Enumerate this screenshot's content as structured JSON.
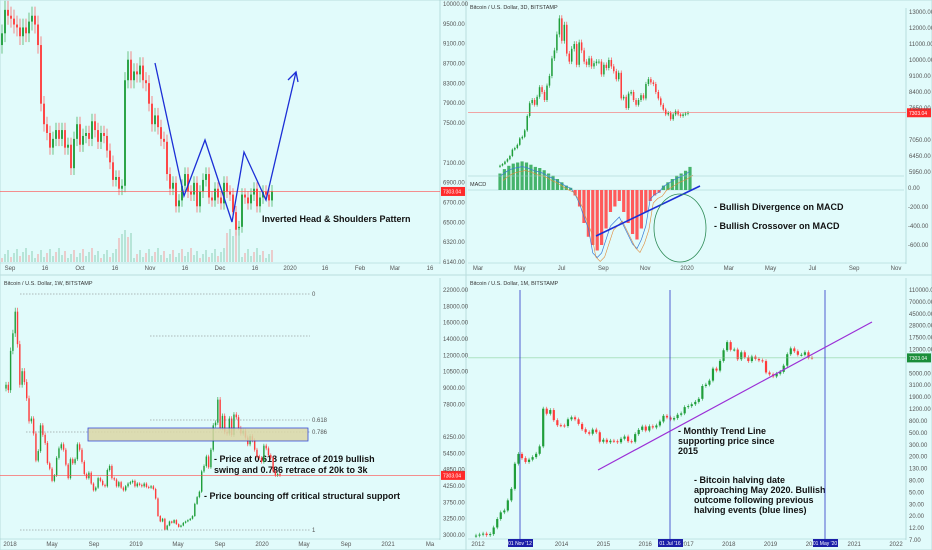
{
  "current_price": "7303.04",
  "colors": {
    "up": "#1f9e3a",
    "down": "#ff3b3b",
    "price_line": "#ff4d4d",
    "bg": "#e1fbfb",
    "pattern": "#1c2fd6",
    "trend": "#9b2fd6",
    "halving": "#2a36c8",
    "halving_label_bg": "#1b1ea8",
    "price_tag_red": "#ff2a2a",
    "price_tag_green": "#1b8e3a"
  },
  "chart_data": [
    {
      "type": "candlestick",
      "interval": "1D",
      "title": "",
      "x_labels": [
        "Sep",
        "16",
        "Oct",
        "16",
        "Nov",
        "16",
        "Dec",
        "16",
        "2020",
        "16",
        "Feb",
        "Mar",
        "16"
      ],
      "y_ticks": [
        "10000.00",
        "9500.00",
        "9100.00",
        "8700.00",
        "8300.00",
        "7900.00",
        "7500.00",
        "7303.04",
        "7100.00",
        "6900.00",
        "6700.00",
        "6500.00",
        "6320.00",
        "6140.00"
      ],
      "annotation": "Inverted Head & Shoulders Pattern",
      "closes": [
        10000,
        10400,
        10300,
        10250,
        10150,
        10100,
        9950,
        10100,
        10000,
        10200,
        10300,
        10150,
        9800,
        8800,
        8450,
        8300,
        8050,
        8200,
        8350,
        8200,
        8350,
        8050,
        8100,
        7700,
        8200,
        8450,
        8100,
        8250,
        8300,
        8200,
        8500,
        8350,
        8150,
        8300,
        8250,
        8000,
        7800,
        7500,
        7550,
        7350,
        7400,
        9200,
        9550,
        9200,
        9350,
        9300,
        9450,
        9200,
        9150,
        8800,
        8450,
        8600,
        8400,
        8200,
        8150,
        7600,
        7350,
        7450,
        7050,
        7150,
        7400,
        7600,
        7300,
        7250,
        7450,
        7050,
        7300,
        7500,
        7600,
        7200,
        7150,
        7350,
        7200,
        7100,
        7450,
        7300,
        7250,
        6950,
        6650,
        6700,
        7250,
        7200,
        7100,
        7250,
        7350,
        7050,
        7200,
        7300,
        7250,
        7150,
        7303
      ]
    },
    {
      "type": "candlestick",
      "interval": "3D",
      "title": "Bitcoin / U.S. Dollar, 3D, BITSTAMP",
      "x_labels": [
        "Mar",
        "May",
        "Jul",
        "Sep",
        "Nov",
        "2020",
        "Mar",
        "May",
        "Jul",
        "Sep",
        "Nov"
      ],
      "y_ticks": [
        "13000.00",
        "12000.00",
        "11000.00",
        "10000.00",
        "9100.00",
        "8400.00",
        "7650.00",
        "7303.04",
        "7050.00",
        "6450.00",
        "5950.00"
      ],
      "macd_ticks": [
        "0.00",
        "-200.00",
        "-400.00",
        "-600.00"
      ],
      "macd_label": "MACD",
      "annotations": [
        "- Bullish Divergence on MACD",
        "- Bullish Crossover on MACD"
      ],
      "closes": [
        4000,
        4100,
        4250,
        4400,
        4600,
        5000,
        5100,
        5300,
        5700,
        5800,
        6200,
        7100,
        7900,
        8100,
        7800,
        8300,
        8900,
        8600,
        8100,
        9000,
        9600,
        10700,
        11200,
        12200,
        13200,
        11800,
        12800,
        11000,
        10500,
        11300,
        11600,
        10300,
        11700,
        11200,
        10500,
        10300,
        10700,
        10200,
        10400,
        10500,
        10500,
        9700,
        10300,
        10100,
        10600,
        10200,
        9900,
        9400,
        9800,
        8200,
        8300,
        7600,
        8500,
        8600,
        8100,
        7800,
        8100,
        8400,
        8200,
        9100,
        9400,
        9200,
        9100,
        8600,
        8200,
        7800,
        7500,
        7200,
        7300,
        6900,
        7200,
        7400,
        7200,
        7100,
        7200,
        7250,
        7303
      ],
      "macd_hist": [
        30,
        38,
        44,
        48,
        50,
        52,
        50,
        46,
        42,
        40,
        36,
        30,
        26,
        20,
        14,
        8,
        4,
        -10,
        -30,
        -60,
        -85,
        -100,
        -110,
        -100,
        -70,
        -40,
        -30,
        -20,
        -40,
        -60,
        -80,
        -90,
        -70,
        -40,
        -20,
        -10,
        -5,
        8,
        14,
        20,
        26,
        30,
        35,
        42
      ]
    },
    {
      "type": "candlestick",
      "interval": "1W",
      "title": "Bitcoin / U.S. Dollar, 1W, BITSTAMP",
      "x_labels": [
        "2018",
        "May",
        "Sep",
        "2019",
        "May",
        "Sep",
        "2020",
        "May",
        "Sep",
        "2021",
        "Ma"
      ],
      "y_ticks": [
        "22000.00",
        "18000.00",
        "16000.00",
        "14000.00",
        "12000.00",
        "10500.00",
        "9000.00",
        "7800.00",
        "7303.04",
        "6250.00",
        "5450.00",
        "4850.00",
        "4250.00",
        "3750.00",
        "3250.00",
        "3000.00"
      ],
      "fib_levels": [
        "0",
        "0.618",
        "0.786",
        "1"
      ],
      "annotations": [
        "- Price at 0.618 retrace of 2019 bullish",
        "swing and 0.786 retrace of 20k to 3k",
        "- Price bouncing off critical structural support"
      ],
      "closes": [
        14000,
        13600,
        16500,
        17800,
        19400,
        17000,
        14000,
        15000,
        14200,
        13000,
        11300,
        11500,
        10400,
        8400,
        9100,
        11000,
        10300,
        9700,
        8200,
        7800,
        6900,
        7300,
        8600,
        9300,
        9600,
        9200,
        8100,
        7100,
        8500,
        8200,
        8500,
        9600,
        9200,
        8300,
        7400,
        7100,
        7500,
        6700,
        6200,
        6400,
        7100,
        6900,
        6600,
        6500,
        7700,
        8000,
        7100,
        7000,
        6500,
        6800,
        6400,
        6200,
        6500,
        6700,
        6800,
        6900,
        6500,
        6700,
        6600,
        6500,
        6700,
        6450,
        6400,
        6500,
        6300,
        5600,
        4300,
        3900,
        4100,
        3300,
        3600,
        3900,
        3800,
        4000,
        3700,
        3500,
        3600,
        3800,
        3900,
        4000,
        4100,
        4300,
        5200,
        5700,
        6100,
        7600,
        8000,
        8700,
        7900,
        9200,
        11000,
        11200,
        12900,
        10800,
        11700,
        10500,
        10400,
        11500,
        10300,
        11800,
        11600,
        10800,
        10400,
        10600,
        10100,
        9600,
        10200,
        9900,
        9200,
        8700,
        8600,
        8300,
        9500,
        9300,
        8800,
        8600,
        7600,
        7300,
        7400,
        7303
      ]
    },
    {
      "type": "candlestick",
      "interval": "1M",
      "scale": "log",
      "title": "Bitcoin / U.S. Dollar, 1M, BITSTAMP",
      "x_labels": [
        "2012",
        "2013",
        "2014",
        "2015",
        "2016",
        "2017",
        "2018",
        "2019",
        "2020",
        "2021",
        "2022"
      ],
      "y_ticks": [
        "110000.00",
        "70000.00",
        "45000.00",
        "28000.00",
        "17500.00",
        "12000.00",
        "7303.04",
        "5000.00",
        "3100.00",
        "1900.00",
        "1200.00",
        "800.00",
        "500.00",
        "300.00",
        "200.00",
        "130.00",
        "80.00",
        "50.00",
        "30.00",
        "20.00",
        "12.00",
        "7.00"
      ],
      "halving_labels": [
        "01 Nov '12",
        "01 Jul '16",
        "01 May '20"
      ],
      "annotations": [
        "- Monthly Trend Line",
        "supporting price since",
        "2015",
        "- Bitcoin halving date",
        "approaching May 2020. Bullish",
        "outcome following previous",
        "halving events (blue lines)"
      ],
      "closes": [
        4.8,
        5,
        5.2,
        4.9,
        5.1,
        6.7,
        9.5,
        12.5,
        13.5,
        20.5,
        33,
        93,
        139,
        117,
        100,
        110,
        122,
        140,
        190,
        900,
        730,
        850,
        560,
        455,
        450,
        440,
        580,
        630,
        580,
        480,
        385,
        340,
        320,
        380,
        340,
        230,
        250,
        225,
        240,
        235,
        225,
        260,
        285,
        235,
        230,
        315,
        375,
        430,
        365,
        435,
        415,
        450,
        530,
        670,
        625,
        575,
        610,
        700,
        740,
        960,
        1000,
        1080,
        1190,
        1350,
        2290,
        2420,
        2860,
        4700,
        4330,
        6450,
        10000,
        14000,
        10200,
        10300,
        6900,
        9200,
        7500,
        6400,
        7700,
        7000,
        6600,
        6400,
        4000,
        3700,
        3400,
        3800,
        4100,
        5300,
        8500,
        10800,
        9600,
        8300,
        8300,
        9200,
        7400,
        7303
      ]
    }
  ]
}
